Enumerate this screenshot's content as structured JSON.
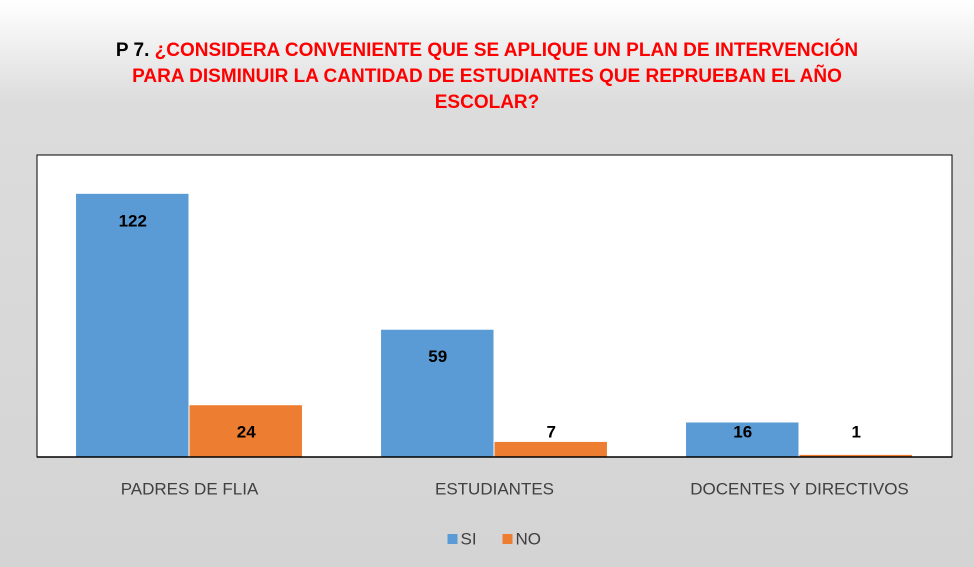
{
  "chart_data": {
    "type": "bar",
    "title": [
      "P 7.",
      "¿CONSIDERA CONVENIENTE QUE SE APLIQUE UN PLAN DE INTERVENCIÓN PARA DISMINUIR  LA CANTIDAD DE ESTUDIANTES QUE REPRUEBAN EL AÑO ESCOLAR?"
    ],
    "categories": [
      "PADRES DE FLIA",
      "ESTUDIANTES",
      "DOCENTES Y DIRECTIVOS"
    ],
    "series": [
      {
        "name": "SI",
        "color": "#5b9bd5",
        "values": [
          122,
          59,
          16
        ]
      },
      {
        "name": "NO",
        "color": "#ed7d31",
        "values": [
          24,
          7,
          1
        ]
      }
    ],
    "ylim": [
      0,
      140
    ],
    "legend": "bottom"
  }
}
